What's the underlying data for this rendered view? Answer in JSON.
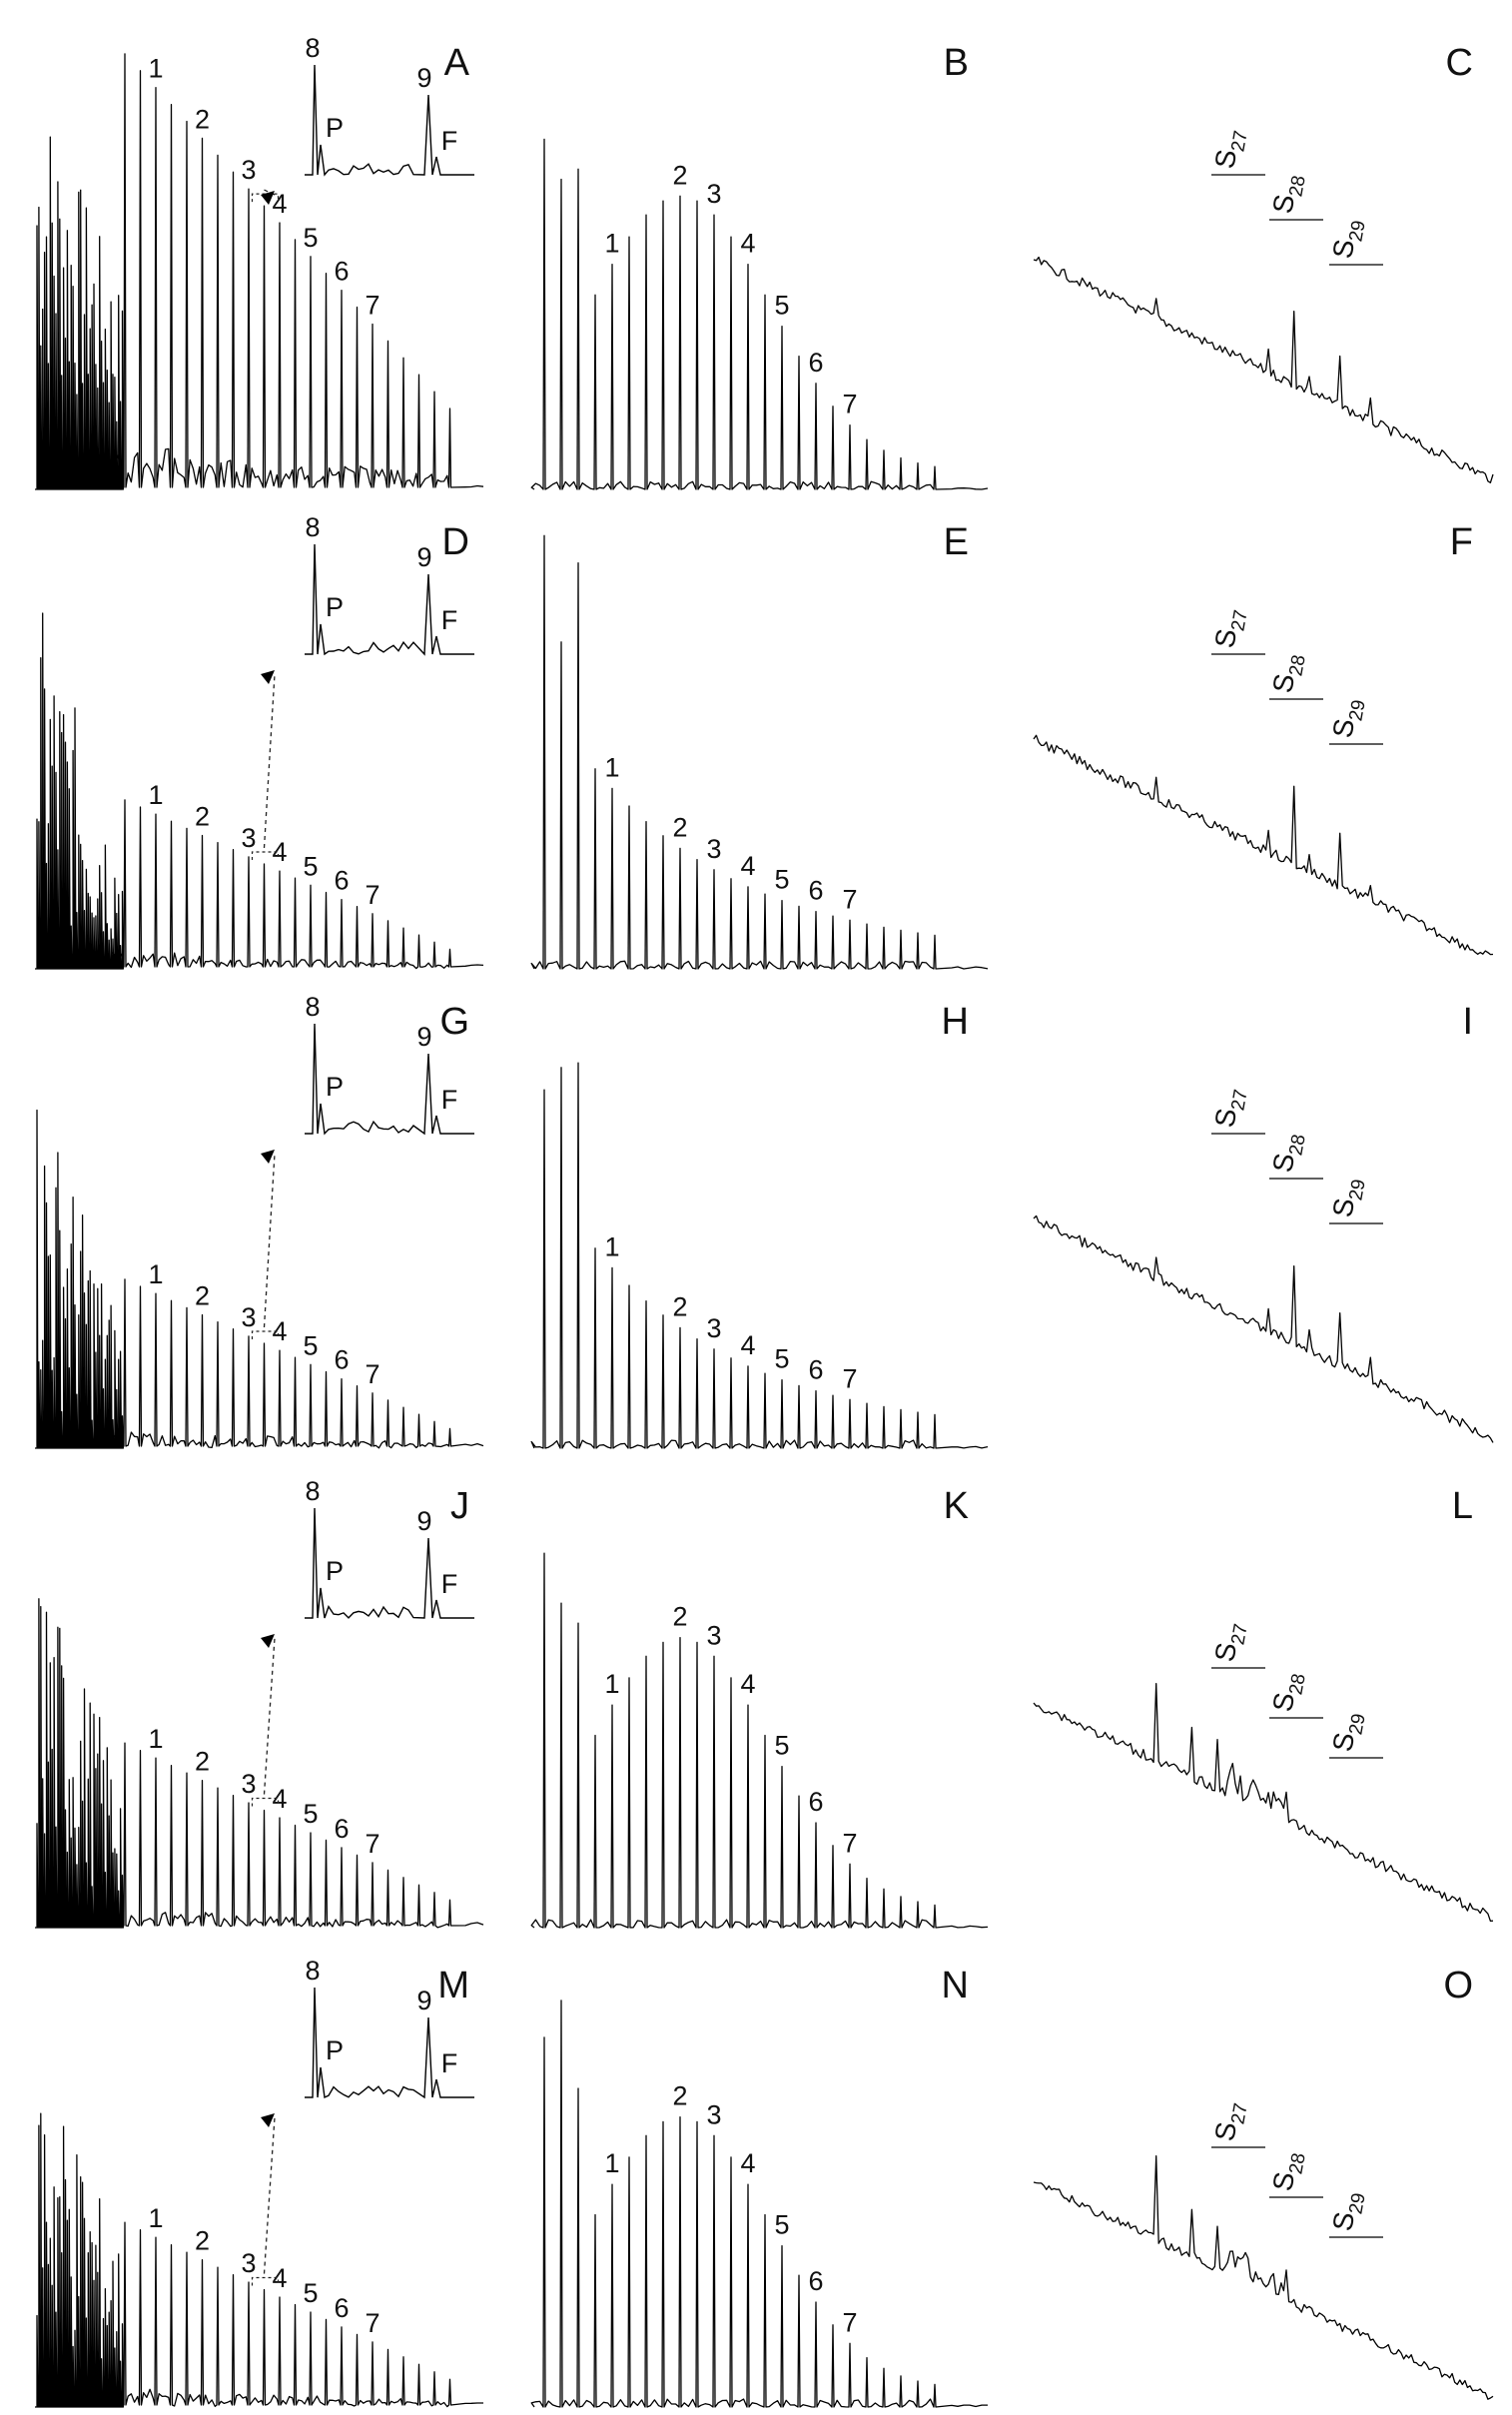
{
  "chart_data": {
    "type": "line",
    "layout": "5 rows x 3 columns of chromatogram traces",
    "panels": [
      {
        "letter": "A",
        "kind": "alkane_with_inset",
        "peak_labels": [
          "1",
          "2",
          "3",
          "4",
          "5",
          "6",
          "7"
        ],
        "inset_labels": [
          "8",
          "P",
          "9",
          "F"
        ],
        "profile": "high_unresolved"
      },
      {
        "letter": "B",
        "kind": "alkane_homolog",
        "peak_labels": [
          "1",
          "2",
          "3",
          "4",
          "5",
          "6",
          "7"
        ],
        "profile": "bell"
      },
      {
        "letter": "C",
        "kind": "sterane",
        "labels": [
          {
            "base": "S",
            "sub": "27"
          },
          {
            "base": "S",
            "sub": "28"
          },
          {
            "base": "S",
            "sub": "29"
          }
        ],
        "profile": "clean"
      },
      {
        "letter": "D",
        "kind": "alkane_with_inset",
        "peak_labels": [
          "1",
          "2",
          "3",
          "4",
          "5",
          "6",
          "7"
        ],
        "inset_labels": [
          "8",
          "P",
          "9",
          "F"
        ],
        "profile": "low"
      },
      {
        "letter": "E",
        "kind": "alkane_homolog",
        "peak_labels": [
          "1",
          "2",
          "3",
          "4",
          "5",
          "6",
          "7"
        ],
        "profile": "decay"
      },
      {
        "letter": "F",
        "kind": "sterane",
        "labels": [
          {
            "base": "S",
            "sub": "27"
          },
          {
            "base": "S",
            "sub": "28"
          },
          {
            "base": "S",
            "sub": "29"
          }
        ],
        "profile": "clean"
      },
      {
        "letter": "G",
        "kind": "alkane_with_inset",
        "peak_labels": [
          "1",
          "2",
          "3",
          "4",
          "5",
          "6",
          "7"
        ],
        "inset_labels": [
          "8",
          "P",
          "9",
          "F"
        ],
        "profile": "low"
      },
      {
        "letter": "H",
        "kind": "alkane_homolog",
        "peak_labels": [
          "1",
          "2",
          "3",
          "4",
          "5",
          "6",
          "7"
        ],
        "profile": "decay"
      },
      {
        "letter": "I",
        "kind": "sterane",
        "labels": [
          {
            "base": "S",
            "sub": "27"
          },
          {
            "base": "S",
            "sub": "28"
          },
          {
            "base": "S",
            "sub": "29"
          }
        ],
        "profile": "clean"
      },
      {
        "letter": "J",
        "kind": "alkane_with_inset",
        "peak_labels": [
          "1",
          "2",
          "3",
          "4",
          "5",
          "6",
          "7"
        ],
        "inset_labels": [
          "8",
          "P",
          "9",
          "F"
        ],
        "profile": "mid"
      },
      {
        "letter": "K",
        "kind": "alkane_homolog",
        "peak_labels": [
          "1",
          "2",
          "3",
          "4",
          "5",
          "6",
          "7"
        ],
        "profile": "bell"
      },
      {
        "letter": "L",
        "kind": "sterane",
        "labels": [
          {
            "base": "S",
            "sub": "27"
          },
          {
            "base": "S",
            "sub": "28"
          },
          {
            "base": "S",
            "sub": "29"
          }
        ],
        "profile": "degraded"
      },
      {
        "letter": "M",
        "kind": "alkane_with_inset",
        "peak_labels": [
          "1",
          "2",
          "3",
          "4",
          "5",
          "6",
          "7"
        ],
        "inset_labels": [
          "8",
          "P",
          "9",
          "F"
        ],
        "profile": "mid"
      },
      {
        "letter": "N",
        "kind": "alkane_homolog",
        "peak_labels": [
          "1",
          "2",
          "3",
          "4",
          "5",
          "6",
          "7"
        ],
        "profile": "bell"
      },
      {
        "letter": "O",
        "kind": "sterane",
        "labels": [
          {
            "base": "S",
            "sub": "27"
          },
          {
            "base": "S",
            "sub": "28"
          },
          {
            "base": "S",
            "sub": "29"
          }
        ],
        "profile": "degraded"
      }
    ],
    "axes_visible": false,
    "grid": false
  }
}
